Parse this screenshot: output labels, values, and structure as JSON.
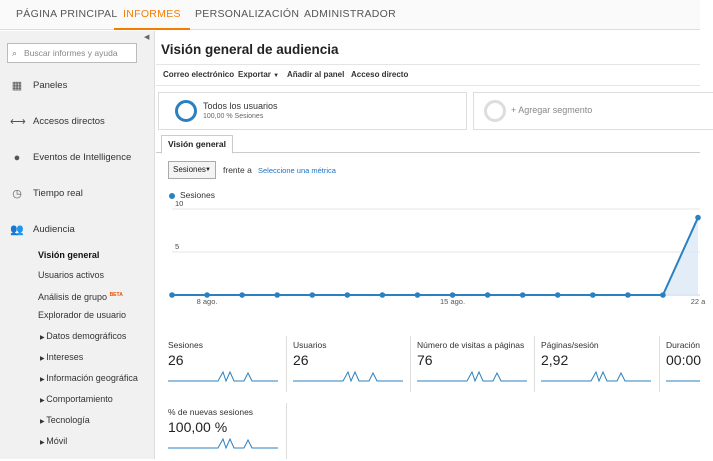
{
  "topnav": {
    "tabs": [
      "PÁGINA PRINCIPAL",
      "INFORMES",
      "PERSONALIZACIÓN",
      "ADMINISTRADOR"
    ],
    "active": 1
  },
  "sidebar": {
    "search_placeholder": "Buscar informes y ayuda",
    "items": [
      {
        "label": "Paneles",
        "icon": "grid-icon"
      },
      {
        "label": "Accesos directos",
        "icon": "shortcut-arrows-icon"
      },
      {
        "label": "Eventos de Intelligence",
        "icon": "lightbulb-icon"
      },
      {
        "label": "Tiempo real",
        "icon": "clock-icon"
      },
      {
        "label": "Audiencia",
        "icon": "people-icon"
      }
    ],
    "audience_sub": [
      {
        "label": "Visión general",
        "active": true
      },
      {
        "label": "Usuarios activos"
      },
      {
        "label": "Análisis de grupo",
        "badge": "BETA"
      },
      {
        "label": "Explorador de usuario"
      },
      {
        "label": "Datos demográficos",
        "expandable": true
      },
      {
        "label": "Intereses",
        "expandable": true
      },
      {
        "label": "Información geográfica",
        "expandable": true
      },
      {
        "label": "Comportamiento",
        "expandable": true
      },
      {
        "label": "Tecnología",
        "expandable": true
      },
      {
        "label": "Móvil",
        "expandable": true
      }
    ]
  },
  "main": {
    "title": "Visión general de audiencia",
    "toolbar": [
      "Correo electrónico",
      "Exportar",
      "Añadir al panel",
      "Acceso directo"
    ],
    "segment": {
      "title": "Todos los usuarios",
      "subtitle": "100,00 % Sesiones"
    },
    "add_segment": "+ Agregar segmento",
    "tab": "Visión general",
    "metric_select": "Sesiones",
    "vs_label": "frente a",
    "select_metric_link": "Seleccione una métrica",
    "legend": "Sesiones",
    "accent": "#2b80c0"
  },
  "chart_data": {
    "type": "line",
    "series": [
      {
        "name": "Sesiones",
        "values": [
          0,
          0,
          0,
          0,
          0,
          0,
          0,
          0,
          0,
          0,
          0,
          0,
          0,
          0,
          0,
          9
        ]
      }
    ],
    "y_ticks": [
      "10",
      "5"
    ],
    "ylim": [
      0,
      10
    ],
    "x_ticks": [
      "8 ago.",
      "15 ago.",
      "22 a"
    ]
  },
  "metrics": [
    {
      "label": "Sesiones",
      "value": "26"
    },
    {
      "label": "Usuarios",
      "value": "26"
    },
    {
      "label": "Número de visitas a páginas",
      "value": "76"
    },
    {
      "label": "Páginas/sesión",
      "value": "2,92"
    },
    {
      "label": "Duración",
      "value": "00:00"
    },
    {
      "label": "% de nuevas sesiones",
      "value": "100,00 %"
    }
  ]
}
